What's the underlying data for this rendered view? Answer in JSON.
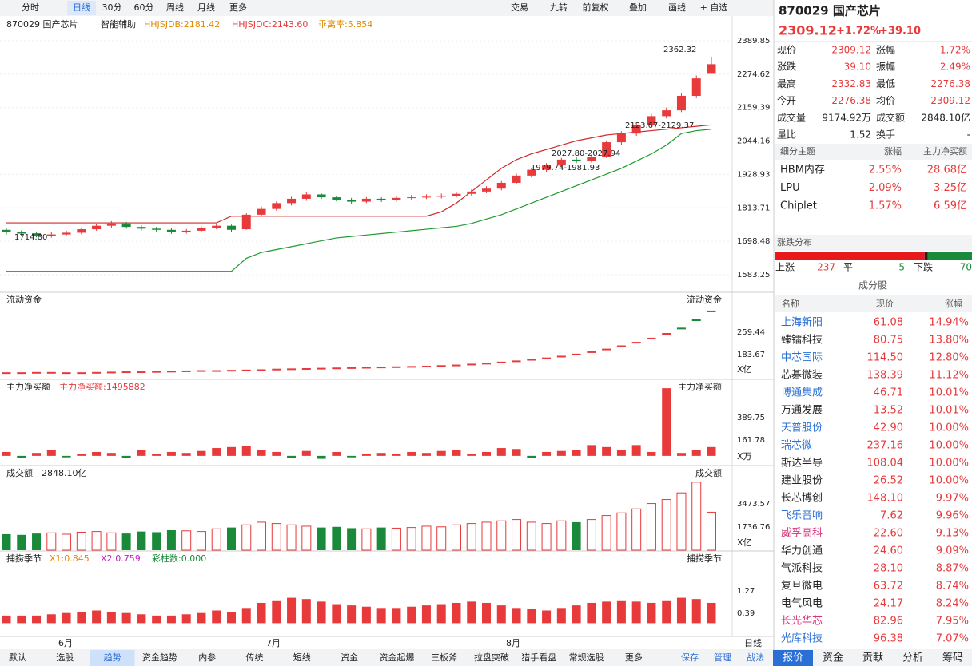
{
  "toolbar": {
    "left": [
      "分时",
      "日线",
      "30分",
      "60分",
      "周线",
      "月线",
      "更多"
    ],
    "selected": "日线",
    "right": [
      "交易",
      "九转",
      "前复权",
      "叠加",
      "画线",
      "+ 自选"
    ]
  },
  "main": {
    "code": "870029 国产芯片",
    "assist": "智能辅助",
    "ind1": "HHJSJDB:2181.42",
    "ind2": "HHJSJDC:2143.60",
    "ind3": "乖离率:5.854",
    "yticks": [
      2389.85,
      2274.62,
      2159.39,
      2044.16,
      1928.93,
      1813.71,
      1698.48,
      1583.25
    ],
    "annotations": [
      "2362.32",
      "2123.67-2129.37",
      "2027.80-2027.94",
      "1979.74-1981.93",
      "1714.80"
    ],
    "candles": [
      [
        1738,
        1730,
        1745,
        1722
      ],
      [
        1730,
        1725,
        1736,
        1718
      ],
      [
        1726,
        1718,
        1732,
        1712
      ],
      [
        1718,
        1722,
        1730,
        1711
      ],
      [
        1722,
        1728,
        1735,
        1716
      ],
      [
        1728,
        1740,
        1746,
        1722
      ],
      [
        1740,
        1752,
        1758,
        1735
      ],
      [
        1752,
        1760,
        1768,
        1745
      ],
      [
        1760,
        1748,
        1765,
        1742
      ],
      [
        1748,
        1742,
        1754,
        1736
      ],
      [
        1742,
        1738,
        1748,
        1731
      ],
      [
        1738,
        1730,
        1744,
        1724
      ],
      [
        1730,
        1735,
        1741,
        1725
      ],
      [
        1735,
        1745,
        1750,
        1729
      ],
      [
        1745,
        1752,
        1760,
        1740
      ],
      [
        1752,
        1738,
        1756,
        1732
      ],
      [
        1740,
        1790,
        1795,
        1738
      ],
      [
        1790,
        1810,
        1818,
        1784
      ],
      [
        1810,
        1830,
        1836,
        1804
      ],
      [
        1830,
        1845,
        1852,
        1822
      ],
      [
        1845,
        1860,
        1868,
        1838
      ],
      [
        1860,
        1850,
        1864,
        1844
      ],
      [
        1850,
        1842,
        1856,
        1836
      ],
      [
        1842,
        1835,
        1848,
        1828
      ],
      [
        1835,
        1845,
        1851,
        1830
      ],
      [
        1845,
        1840,
        1850,
        1834
      ],
      [
        1840,
        1848,
        1854,
        1835
      ],
      [
        1848,
        1850,
        1858,
        1842
      ],
      [
        1850,
        1852,
        1860,
        1844
      ],
      [
        1852,
        1855,
        1863,
        1846
      ],
      [
        1855,
        1862,
        1868,
        1849
      ],
      [
        1862,
        1870,
        1877,
        1856
      ],
      [
        1870,
        1880,
        1888,
        1864
      ],
      [
        1880,
        1900,
        1906,
        1874
      ],
      [
        1900,
        1925,
        1932,
        1894
      ],
      [
        1925,
        1945,
        1952,
        1918
      ],
      [
        1945,
        1960,
        1968,
        1938
      ],
      [
        1960,
        1980,
        1986,
        1952
      ],
      [
        1980,
        1975,
        1990,
        1968
      ],
      [
        1975,
        1990,
        1998,
        1970
      ],
      [
        1990,
        2040,
        2046,
        1986
      ],
      [
        2040,
        2070,
        2078,
        2032
      ],
      [
        2070,
        2100,
        2108,
        2062
      ],
      [
        2100,
        2130,
        2138,
        2092
      ],
      [
        2130,
        2150,
        2160,
        2122
      ],
      [
        2150,
        2200,
        2208,
        2144
      ],
      [
        2200,
        2260,
        2270,
        2192
      ],
      [
        2276,
        2309,
        2333,
        2276
      ]
    ],
    "upper": [
      1762,
      1762,
      1762,
      1762,
      1762,
      1762,
      1762,
      1762,
      1762,
      1762,
      1762,
      1762,
      1762,
      1762,
      1762,
      1785,
      1785,
      1785,
      1785,
      1785,
      1785,
      1785,
      1785,
      1785,
      1785,
      1785,
      1785,
      1785,
      1785,
      1800,
      1830,
      1870,
      1910,
      1950,
      1980,
      2000,
      2015,
      2030,
      2045,
      2055,
      2065,
      2070,
      2075,
      2080,
      2085,
      2090,
      2095,
      2100
    ],
    "lower": [
      1595,
      1595,
      1595,
      1595,
      1595,
      1595,
      1595,
      1595,
      1595,
      1595,
      1595,
      1595,
      1595,
      1595,
      1595,
      1595,
      1640,
      1660,
      1670,
      1680,
      1690,
      1700,
      1710,
      1715,
      1720,
      1725,
      1730,
      1735,
      1740,
      1745,
      1750,
      1760,
      1775,
      1790,
      1810,
      1830,
      1850,
      1870,
      1890,
      1910,
      1930,
      1950,
      1975,
      2000,
      2030,
      2070,
      2080,
      2085
    ]
  },
  "flow": {
    "title": "流动资金",
    "yticks": [
      183.67,
      259.44
    ],
    "unit": "X亿",
    "values": [
      121,
      121,
      122,
      122,
      121,
      121,
      122,
      123,
      124,
      124,
      125,
      126,
      127,
      128,
      128,
      129,
      130,
      131,
      133,
      134,
      135,
      136,
      137,
      138,
      139,
      140,
      141,
      142,
      143,
      145,
      147,
      150,
      153,
      157,
      161,
      166,
      171,
      177,
      184,
      192,
      201,
      212,
      224,
      238,
      254,
      272,
      300,
      330
    ]
  },
  "netbuy": {
    "title": "主力净买额",
    "label": "主力净买额:1495882",
    "yticks": [
      161.78,
      389.75
    ],
    "unit": "X万",
    "values": [
      40,
      -20,
      30,
      60,
      -15,
      20,
      40,
      30,
      -25,
      60,
      20,
      40,
      30,
      50,
      80,
      90,
      100,
      60,
      40,
      -20,
      50,
      -30,
      40,
      -15,
      20,
      30,
      20,
      40,
      30,
      50,
      60,
      20,
      40,
      80,
      70,
      -20,
      40,
      50,
      60,
      110,
      90,
      60,
      110,
      40,
      690,
      30,
      60,
      90
    ]
  },
  "volume": {
    "title": "成交额",
    "yticks": [
      1736.76,
      3473.57
    ],
    "unit": "X亿",
    "values": [
      1200,
      1150,
      1250,
      1300,
      1200,
      1350,
      1400,
      1300,
      1250,
      1400,
      1350,
      1500,
      1450,
      1400,
      1600,
      1700,
      1900,
      2100,
      2000,
      1900,
      1800,
      1700,
      1750,
      1650,
      1600,
      1700,
      1650,
      1700,
      1800,
      1750,
      1900,
      2000,
      2100,
      2200,
      2300,
      2100,
      2000,
      2200,
      2100,
      2300,
      2600,
      2800,
      3100,
      3500,
      3800,
      4300,
      5100,
      2848.1
    ],
    "value_labels": {
      "47": "2848.10亿"
    }
  },
  "season": {
    "title": "捕捞季节",
    "x1": "X1:0.845",
    "x2": "X2:0.759",
    "bars": "彩柱数:0.000",
    "yticks": [
      0.39,
      1.27
    ],
    "values": [
      0.3,
      0.3,
      0.3,
      0.35,
      0.4,
      0.45,
      0.5,
      0.45,
      0.4,
      0.35,
      0.3,
      0.3,
      0.35,
      0.4,
      0.5,
      0.45,
      0.6,
      0.8,
      0.9,
      1.0,
      0.95,
      0.85,
      0.75,
      0.7,
      0.65,
      0.6,
      0.6,
      0.65,
      0.7,
      0.75,
      0.8,
      0.85,
      0.8,
      0.7,
      0.6,
      0.55,
      0.5,
      0.6,
      0.7,
      0.8,
      0.85,
      0.9,
      0.85,
      0.8,
      0.9,
      1.0,
      0.95,
      0.8
    ]
  },
  "months": [
    "6月",
    "7月",
    "8月"
  ],
  "period": "日线",
  "tabs": [
    "默认",
    "选股",
    "趋势",
    "资金趋势",
    "内参",
    "传统",
    "短线",
    "资金",
    "资金起爆",
    "三板斧",
    "拉盘突破",
    "猎手看盘",
    "常规选股",
    "更多"
  ],
  "tabs_selected": "趋势",
  "tabs_right": [
    "保存",
    "管理",
    "战法"
  ],
  "side": {
    "title": "870029 国产芯片",
    "price": "2309.12",
    "pct": "+1.72%",
    "chg": "+39.10",
    "quote": [
      [
        "现价",
        "2309.12",
        "涨幅",
        "1.72%"
      ],
      [
        "涨跌",
        "39.10",
        "振幅",
        "2.49%"
      ],
      [
        "最高",
        "2332.83",
        "最低",
        "2276.38"
      ],
      [
        "今开",
        "2276.38",
        "均价",
        "2309.12"
      ],
      [
        "成交量",
        "9174.92万",
        "成交额",
        "2848.10亿"
      ],
      [
        "量比",
        "1.52",
        "换手",
        "-"
      ]
    ],
    "theme_header": [
      "细分主题",
      "涨幅",
      "主力净买额"
    ],
    "themes": [
      [
        "HBM内存",
        "2.55%",
        "28.68亿"
      ],
      [
        "LPU",
        "2.09%",
        "3.25亿"
      ],
      [
        "Chiplet",
        "1.57%",
        "6.59亿"
      ]
    ],
    "dist_title": "涨跌分布",
    "up_label": "上涨",
    "up": 237,
    "flat_label": "平",
    "flat": 5,
    "down_label": "下跌",
    "down": 70,
    "stocks_title": "成分股",
    "stocks_header": [
      "名称",
      "现价",
      "涨幅"
    ],
    "stocks": [
      [
        "上海新阳",
        "61.08",
        "14.94%",
        "#2a6fd6"
      ],
      [
        "臻镭科技",
        "80.75",
        "13.80%",
        "#222222"
      ],
      [
        "中芯国际",
        "114.50",
        "12.80%",
        "#2a6fd6"
      ],
      [
        "芯碁微装",
        "138.39",
        "11.12%",
        "#222222"
      ],
      [
        "博通集成",
        "46.71",
        "10.01%",
        "#2a6fd6"
      ],
      [
        "万通发展",
        "13.52",
        "10.01%",
        "#222222"
      ],
      [
        "天普股份",
        "42.90",
        "10.00%",
        "#2a6fd6"
      ],
      [
        "瑞芯微",
        "237.16",
        "10.00%",
        "#2a6fd6"
      ],
      [
        "斯达半导",
        "108.04",
        "10.00%",
        "#222222"
      ],
      [
        "建业股份",
        "26.52",
        "10.00%",
        "#222222"
      ],
      [
        "长芯博创",
        "148.10",
        "9.97%",
        "#222222"
      ],
      [
        "飞乐音响",
        "7.62",
        "9.96%",
        "#2a6fd6"
      ],
      [
        "威孚高科",
        "22.60",
        "9.13%",
        "#d6337a"
      ],
      [
        "华力创通",
        "24.60",
        "9.09%",
        "#222222"
      ],
      [
        "气派科技",
        "28.10",
        "8.87%",
        "#222222"
      ],
      [
        "复旦微电",
        "63.72",
        "8.74%",
        "#222222"
      ],
      [
        "电气风电",
        "24.17",
        "8.24%",
        "#222222"
      ],
      [
        "长光华芯",
        "82.96",
        "7.95%",
        "#d6337a"
      ],
      [
        "光库科技",
        "96.38",
        "7.07%",
        "#2a6fd6"
      ]
    ],
    "tabs": [
      "报价",
      "资金",
      "贡献",
      "分析",
      "筹码"
    ],
    "tabs_selected": "报价"
  }
}
